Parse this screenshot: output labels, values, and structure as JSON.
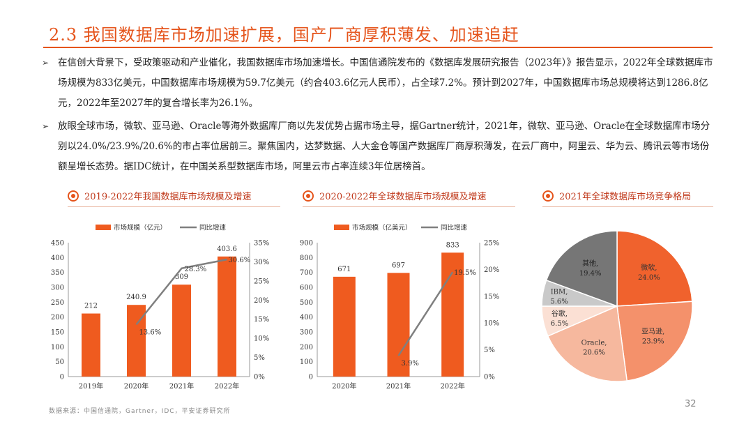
{
  "page": {
    "title": "2.3 我国数据库市场加速扩展，国产厂商厚积薄发、加速追赶",
    "bullets": [
      "在信创大背景下，受政策驱动和产业催化，我国数据库市场加速增长。中国信通院发布的《数据库发展研究报告（2023年）》报告显示，2022年全球数据库市场规模为833亿美元，中国数据库市场规模为59.7亿美元（约合403.6亿元人民币），占全球7.2%。预计到2027年，中国数据库市场总规模将达到1286.8亿元，2022年至2027年的复合增长率为26.1%。",
      "放眼全球市场，微软、亚马逊、Oracle等海外数据库厂商以先发优势占据市场主导，据Gartner统计，2021年，微软、亚马逊、Oracle在全球数据库市场分别以24.0%/23.9%/20.6%的市占率位居前三。聚焦国内，达梦数据、人大金仓等国产数据库厂商厚积薄发，在云厂商中，阿里云、华为云、腾讯云等市场份额呈增长态势。据IDC统计，在中国关系型数据库市场，阿里云市占率连续3年位居榜首。"
    ],
    "bullet_marker": "➢",
    "source": "数据来源：中国信通院，Gartner，IDC，平安证券研究所",
    "page_number": "32"
  },
  "colors": {
    "accent": "#e5541b",
    "bar": "#ef5b1f",
    "line": "#7f7f7f"
  },
  "chart_data": [
    {
      "type": "bar",
      "title": "2019-2022年我国数据库市场规模及增速",
      "categories": [
        "2019年",
        "2020年",
        "2021年",
        "2022年"
      ],
      "series": [
        {
          "name": "市场规模（亿元）",
          "type": "bar",
          "axis": "left",
          "values": [
            212,
            240.9,
            309,
            403.6
          ],
          "labels": [
            "212",
            "240.9",
            "309",
            "403.6"
          ]
        },
        {
          "name": "同比增速",
          "type": "line",
          "axis": "right",
          "values": [
            null,
            13.6,
            28.3,
            30.6
          ],
          "labels": [
            "",
            "13.6%",
            "28.3%",
            "30.6%"
          ]
        }
      ],
      "left_axis": {
        "min": 0,
        "max": 450,
        "step": 50,
        "ticks": [
          "0",
          "50",
          "100",
          "150",
          "200",
          "250",
          "300",
          "350",
          "400",
          "450"
        ]
      },
      "right_axis": {
        "min": 0,
        "max": 35,
        "step": 5,
        "ticks": [
          "0%",
          "5%",
          "10%",
          "15%",
          "20%",
          "25%",
          "30%",
          "35%"
        ]
      },
      "legend": "top-center",
      "grid": false
    },
    {
      "type": "bar",
      "title": "2020-2022年全球数据库市场规模及增速",
      "categories": [
        "2020年",
        "2021年",
        "2022年"
      ],
      "series": [
        {
          "name": "市场规模（亿美元）",
          "type": "bar",
          "axis": "left",
          "values": [
            671,
            697,
            833
          ],
          "labels": [
            "671",
            "697",
            "833"
          ]
        },
        {
          "name": "同比增速",
          "type": "line",
          "axis": "right",
          "values": [
            null,
            3.9,
            19.5
          ],
          "labels": [
            "",
            "3.9%",
            "19.5%"
          ]
        }
      ],
      "left_axis": {
        "min": 0,
        "max": 900,
        "step": 100,
        "ticks": [
          "0",
          "100",
          "200",
          "300",
          "400",
          "500",
          "600",
          "700",
          "800",
          "900"
        ]
      },
      "right_axis": {
        "min": 0,
        "max": 25,
        "step": 5,
        "ticks": [
          "0%",
          "5%",
          "10%",
          "15%",
          "20%",
          "25%"
        ]
      },
      "legend": "top-center",
      "grid": false
    },
    {
      "type": "pie",
      "title": "2021年全球数据库市场竞争格局",
      "slices": [
        {
          "label": "微软",
          "value": 24.0,
          "display": "24.0%",
          "color": "#f0622d",
          "text_color": "#333333"
        },
        {
          "label": "亚马逊",
          "value": 23.9,
          "display": "23.9%",
          "color": "#f4916b",
          "text_color": "#333333"
        },
        {
          "label": "Oracle",
          "value": 20.6,
          "display": "20.6%",
          "color": "#f6b89e",
          "text_color": "#333333"
        },
        {
          "label": "谷歌",
          "value": 6.5,
          "display": "6.5%",
          "color": "#fbe0d4",
          "text_color": "#333333"
        },
        {
          "label": "IBM",
          "value": 5.6,
          "display": "5.6%",
          "color": "#c9c9c9",
          "text_color": "#333333"
        },
        {
          "label": "其他",
          "value": 19.4,
          "display": "19.4%",
          "color": "#767676",
          "text_color": "#222222"
        }
      ]
    }
  ]
}
